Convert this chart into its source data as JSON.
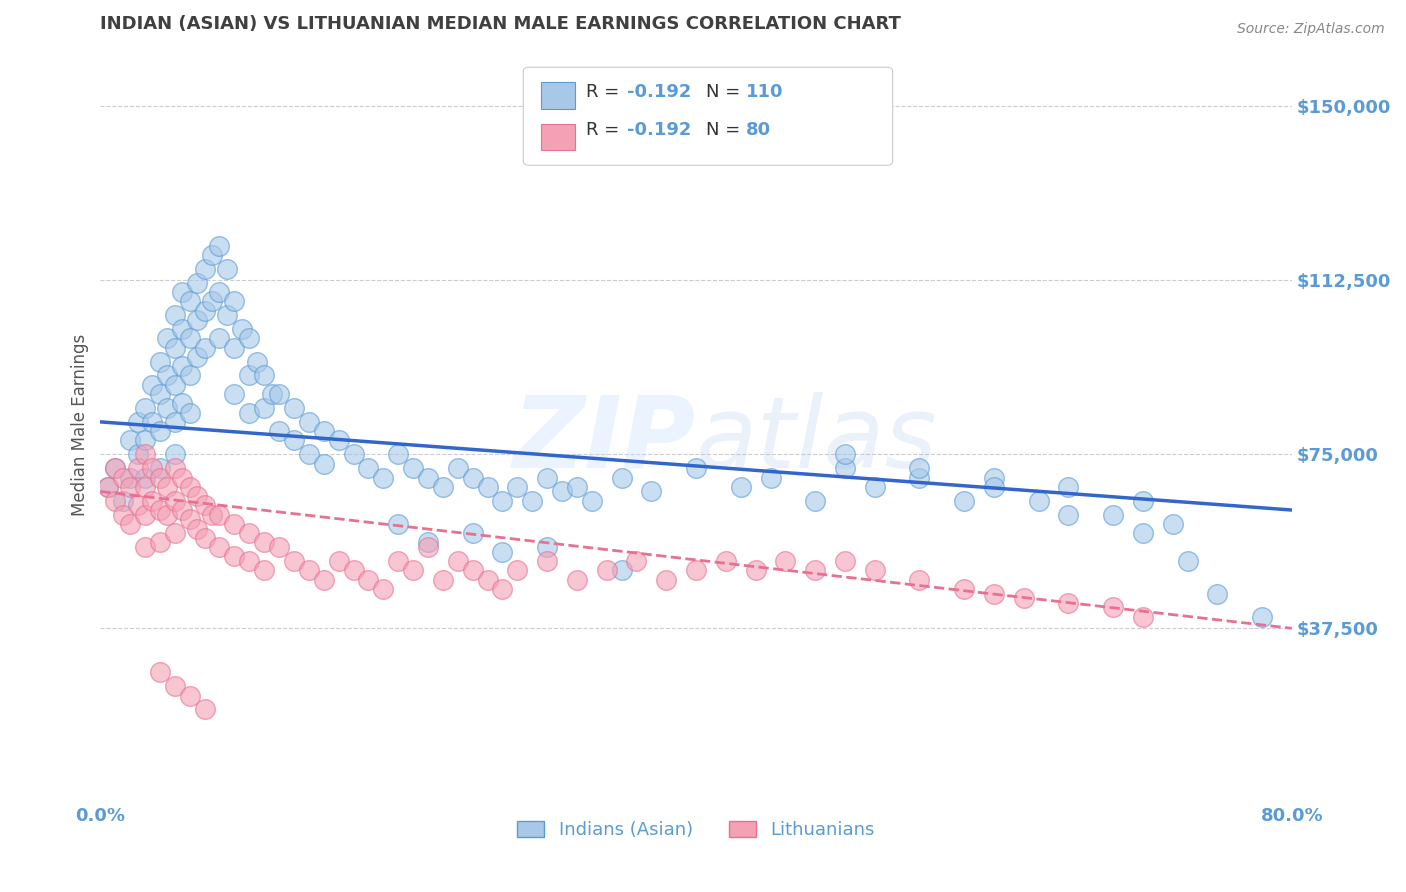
{
  "title": "INDIAN (ASIAN) VS LITHUANIAN MEDIAN MALE EARNINGS CORRELATION CHART",
  "source": "Source: ZipAtlas.com",
  "ylabel": "Median Male Earnings",
  "xlim": [
    0.0,
    0.8
  ],
  "ylim": [
    0,
    162500
  ],
  "yticks": [
    37500,
    75000,
    112500,
    150000
  ],
  "ytick_labels": [
    "$37,500",
    "$75,000",
    "$112,500",
    "$150,000"
  ],
  "xticks": [
    0.0,
    0.8
  ],
  "xtick_labels": [
    "0.0%",
    "80.0%"
  ],
  "watermark": "ZIPatlas",
  "legend_label1": "Indians (Asian)",
  "legend_label2": "Lithuanians",
  "blue_color": "#A8C8E8",
  "blue_edge_color": "#5B9BD5",
  "pink_color": "#F4A0B5",
  "pink_edge_color": "#E87090",
  "blue_line_color": "#3366CC",
  "pink_line_color": "#E87090",
  "title_color": "#404040",
  "tick_label_color": "#5B9BD5",
  "source_color": "#888888",
  "background_color": "#FFFFFF",
  "indian_x": [
    0.005,
    0.01,
    0.015,
    0.02,
    0.02,
    0.025,
    0.025,
    0.03,
    0.03,
    0.03,
    0.035,
    0.035,
    0.04,
    0.04,
    0.04,
    0.04,
    0.045,
    0.045,
    0.045,
    0.05,
    0.05,
    0.05,
    0.05,
    0.05,
    0.055,
    0.055,
    0.055,
    0.055,
    0.06,
    0.06,
    0.06,
    0.06,
    0.065,
    0.065,
    0.065,
    0.07,
    0.07,
    0.07,
    0.075,
    0.075,
    0.08,
    0.08,
    0.08,
    0.085,
    0.085,
    0.09,
    0.09,
    0.09,
    0.095,
    0.1,
    0.1,
    0.1,
    0.105,
    0.11,
    0.11,
    0.115,
    0.12,
    0.12,
    0.13,
    0.13,
    0.14,
    0.14,
    0.15,
    0.15,
    0.16,
    0.17,
    0.18,
    0.19,
    0.2,
    0.21,
    0.22,
    0.23,
    0.24,
    0.25,
    0.26,
    0.27,
    0.28,
    0.29,
    0.3,
    0.31,
    0.32,
    0.33,
    0.35,
    0.37,
    0.4,
    0.43,
    0.45,
    0.48,
    0.5,
    0.52,
    0.55,
    0.58,
    0.6,
    0.63,
    0.65,
    0.68,
    0.7,
    0.72,
    0.3,
    0.35,
    0.25,
    0.27,
    0.2,
    0.22,
    0.5,
    0.55,
    0.6,
    0.65,
    0.7,
    0.73,
    0.75,
    0.78
  ],
  "indian_y": [
    68000,
    72000,
    65000,
    78000,
    70000,
    82000,
    75000,
    85000,
    78000,
    70000,
    90000,
    82000,
    95000,
    88000,
    80000,
    72000,
    100000,
    92000,
    85000,
    105000,
    98000,
    90000,
    82000,
    75000,
    110000,
    102000,
    94000,
    86000,
    108000,
    100000,
    92000,
    84000,
    112000,
    104000,
    96000,
    115000,
    106000,
    98000,
    118000,
    108000,
    120000,
    110000,
    100000,
    115000,
    105000,
    108000,
    98000,
    88000,
    102000,
    100000,
    92000,
    84000,
    95000,
    92000,
    85000,
    88000,
    88000,
    80000,
    85000,
    78000,
    82000,
    75000,
    80000,
    73000,
    78000,
    75000,
    72000,
    70000,
    75000,
    72000,
    70000,
    68000,
    72000,
    70000,
    68000,
    65000,
    68000,
    65000,
    70000,
    67000,
    68000,
    65000,
    70000,
    67000,
    72000,
    68000,
    70000,
    65000,
    72000,
    68000,
    70000,
    65000,
    70000,
    65000,
    68000,
    62000,
    65000,
    60000,
    55000,
    50000,
    58000,
    54000,
    60000,
    56000,
    75000,
    72000,
    68000,
    62000,
    58000,
    52000,
    45000,
    40000
  ],
  "lith_x": [
    0.005,
    0.01,
    0.01,
    0.015,
    0.015,
    0.02,
    0.02,
    0.025,
    0.025,
    0.03,
    0.03,
    0.03,
    0.03,
    0.035,
    0.035,
    0.04,
    0.04,
    0.04,
    0.045,
    0.045,
    0.05,
    0.05,
    0.05,
    0.055,
    0.055,
    0.06,
    0.06,
    0.065,
    0.065,
    0.07,
    0.07,
    0.075,
    0.08,
    0.08,
    0.09,
    0.09,
    0.1,
    0.1,
    0.11,
    0.11,
    0.12,
    0.13,
    0.14,
    0.15,
    0.16,
    0.17,
    0.18,
    0.19,
    0.2,
    0.21,
    0.22,
    0.23,
    0.24,
    0.25,
    0.26,
    0.27,
    0.28,
    0.3,
    0.32,
    0.34,
    0.36,
    0.38,
    0.4,
    0.42,
    0.44,
    0.46,
    0.48,
    0.5,
    0.52,
    0.55,
    0.58,
    0.6,
    0.62,
    0.65,
    0.68,
    0.7,
    0.04,
    0.05,
    0.06,
    0.07
  ],
  "lith_y": [
    68000,
    72000,
    65000,
    70000,
    62000,
    68000,
    60000,
    72000,
    64000,
    75000,
    68000,
    62000,
    55000,
    72000,
    65000,
    70000,
    63000,
    56000,
    68000,
    62000,
    72000,
    65000,
    58000,
    70000,
    63000,
    68000,
    61000,
    66000,
    59000,
    64000,
    57000,
    62000,
    62000,
    55000,
    60000,
    53000,
    58000,
    52000,
    56000,
    50000,
    55000,
    52000,
    50000,
    48000,
    52000,
    50000,
    48000,
    46000,
    52000,
    50000,
    55000,
    48000,
    52000,
    50000,
    48000,
    46000,
    50000,
    52000,
    48000,
    50000,
    52000,
    48000,
    50000,
    52000,
    50000,
    52000,
    50000,
    52000,
    50000,
    48000,
    46000,
    45000,
    44000,
    43000,
    42000,
    40000,
    28000,
    25000,
    23000,
    20000
  ]
}
